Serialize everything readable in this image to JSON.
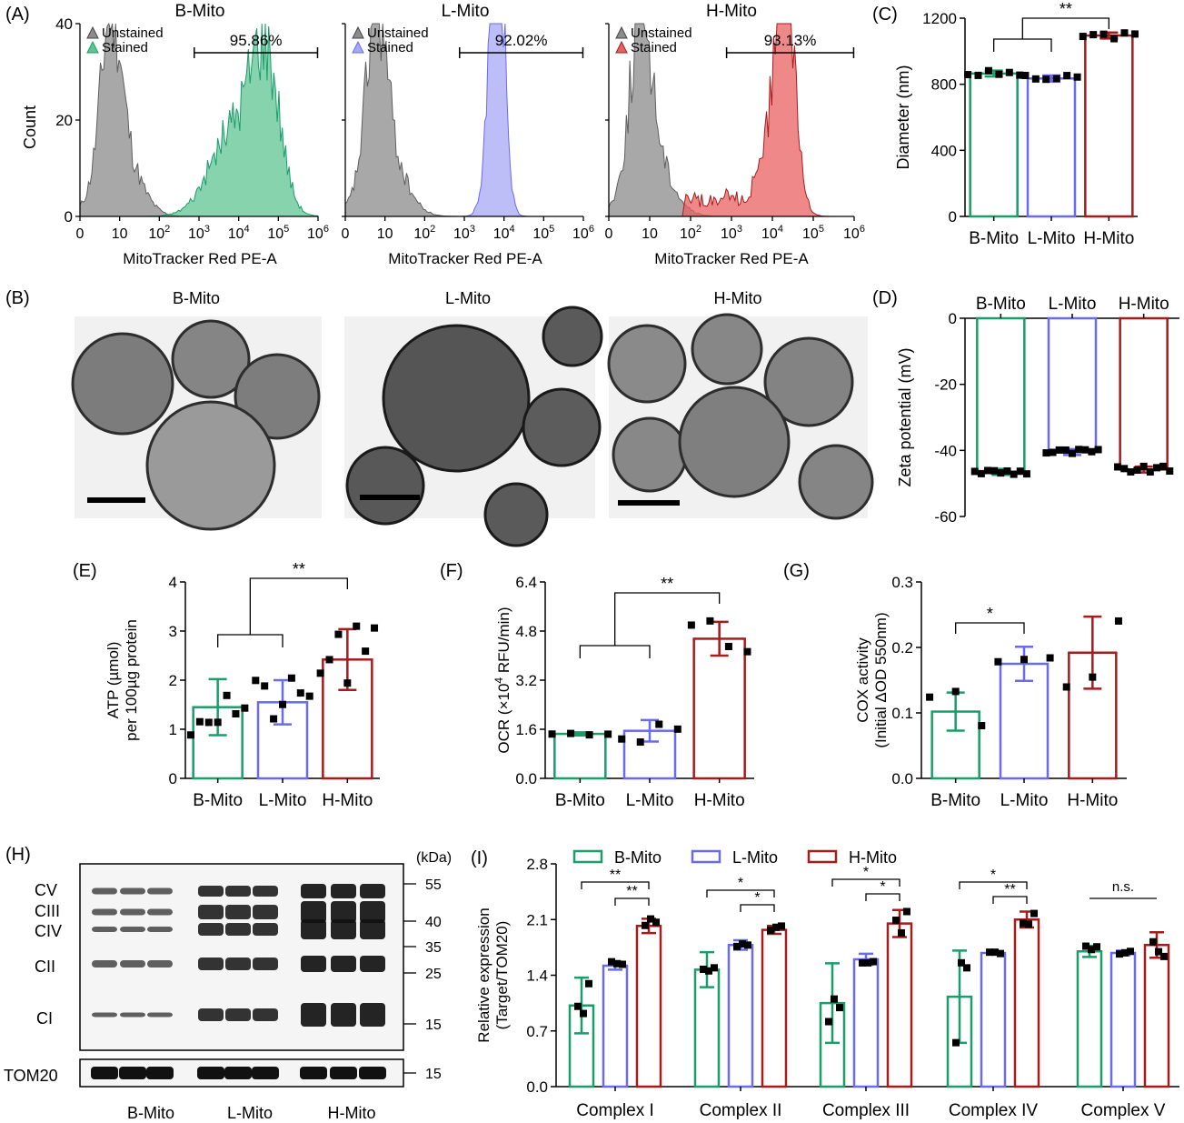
{
  "colors": {
    "b_mito": "#1a9d6a",
    "l_mito": "#6a6af0",
    "h_mito": "#a51c1c",
    "unstained": "#8c8c8c",
    "b_fill": "#5fc493",
    "l_fill": "#a7a7f5",
    "h_fill": "#e96060"
  },
  "panel_letters": {
    "a": "(A)",
    "b": "(B)",
    "c": "(C)",
    "d": "(D)",
    "e": "(E)",
    "f": "(F)",
    "g": "(G)",
    "h": "(H)",
    "i": "(I)"
  },
  "group_names": [
    "B-Mito",
    "L-Mito",
    "H-Mito"
  ],
  "sig": {
    "double": "**",
    "single": "*",
    "ns": "n.s."
  },
  "flow": {
    "ylabel": "Count",
    "xlabel": "MitoTracker Red PE-A",
    "y_ticks": [
      "0",
      "20",
      "40"
    ],
    "x_ticks": [
      {
        "base": "0",
        "exp": ""
      },
      {
        "base": "10",
        "exp": ""
      },
      {
        "base": "10",
        "exp": "2"
      },
      {
        "base": "10",
        "exp": "3"
      },
      {
        "base": "10",
        "exp": "4"
      },
      {
        "base": "10",
        "exp": "5"
      },
      {
        "base": "10",
        "exp": "6"
      }
    ],
    "legend_unstained": "Unstained",
    "legend_stained": "Stained",
    "panels": [
      {
        "title": "B-Mito",
        "gate_label": "95.86%"
      },
      {
        "title": "L-Mito",
        "gate_label": "92.02%"
      },
      {
        "title": "H-Mito",
        "gate_label": "93.13%"
      }
    ]
  },
  "tem": {
    "titles": [
      "B-Mito",
      "L-Mito",
      "H-Mito"
    ]
  },
  "blot": {
    "unit_label": "(kDa)",
    "band_labels": [
      "CV",
      "CIII",
      "CIV",
      "CII",
      "CI"
    ],
    "loading_label": "TOM20",
    "mw_markers": [
      "55",
      "40",
      "35",
      "25",
      "15"
    ],
    "tom20_marker": "15",
    "lane_labels": [
      "B-Mito",
      "L-Mito",
      "H-Mito"
    ]
  },
  "chart_data": [
    {
      "panel": "C",
      "type": "bar",
      "categories": [
        "B-Mito",
        "L-Mito",
        "H-Mito"
      ],
      "values": [
        865,
        835,
        1095
      ],
      "ylabel": "Diameter (nm)",
      "ylim": [
        0,
        1200
      ],
      "y_ticks": [
        "0",
        "400",
        "800",
        "1200"
      ],
      "significance": [
        {
          "label": "**",
          "between": "B-Mito & L-Mito vs H-Mito"
        }
      ]
    },
    {
      "panel": "D",
      "type": "bar",
      "categories": [
        "B-Mito",
        "L-Mito",
        "H-Mito"
      ],
      "values": [
        -46.5,
        -40.5,
        -45.8
      ],
      "ylabel": "Zeta potential (mV)",
      "ylim": [
        -60,
        0
      ],
      "y_ticks": [
        "0",
        "-20",
        "-40",
        "-60"
      ]
    },
    {
      "panel": "E",
      "type": "bar",
      "categories": [
        "B-Mito",
        "L-Mito",
        "H-Mito"
      ],
      "values": [
        1.45,
        1.55,
        2.42
      ],
      "error": [
        0.57,
        0.45,
        0.62
      ],
      "ylabel_line1": "ATP (µmol)",
      "ylabel_line2": "per 100µg protein",
      "ylim": [
        0,
        4
      ],
      "y_ticks": [
        "0",
        "1",
        "2",
        "3",
        "4"
      ],
      "significance": [
        {
          "label": "**",
          "between": "B-Mito & L-Mito vs H-Mito"
        }
      ]
    },
    {
      "panel": "F",
      "type": "bar",
      "categories": [
        "B-Mito",
        "L-Mito",
        "H-Mito"
      ],
      "values": [
        1.45,
        1.55,
        4.55
      ],
      "error": [
        0.05,
        0.35,
        0.55
      ],
      "ylabel_pre": "OCR (×10",
      "ylabel_sup": "4",
      "ylabel_post": " RFU/min)",
      "ylim": [
        0,
        6.4
      ],
      "y_ticks": [
        "0.0",
        "1.6",
        "3.2",
        "4.8",
        "6.4"
      ],
      "significance": [
        {
          "label": "**",
          "between": "B-Mito & L-Mito vs H-Mito"
        }
      ]
    },
    {
      "panel": "G",
      "type": "bar",
      "categories": [
        "B-Mito",
        "L-Mito",
        "H-Mito"
      ],
      "values": [
        0.102,
        0.175,
        0.192
      ],
      "error": [
        0.029,
        0.026,
        0.055
      ],
      "ylabel_line1": "COX activity",
      "ylabel_line2": "(Initial ΔOD 550nm)",
      "ylim": [
        0,
        0.3
      ],
      "y_ticks": [
        "0.0",
        "0.1",
        "0.2",
        "0.3"
      ],
      "significance": [
        {
          "label": "*",
          "between": "B-Mito vs L-Mito"
        }
      ]
    },
    {
      "panel": "I",
      "type": "bar",
      "categories": [
        "Complex I",
        "Complex II",
        "Complex III",
        "Complex IV",
        "Complex V"
      ],
      "ylabel_line1": "Relative expression",
      "ylabel_line2": "(Target/TOM20)",
      "ylim": [
        0,
        2.8
      ],
      "y_ticks": [
        "0.0",
        "0.7",
        "1.4",
        "2.1",
        "2.8"
      ],
      "legend_position": "top",
      "series": [
        {
          "name": "B-Mito",
          "values": [
            1.02,
            1.47,
            1.05,
            1.13,
            1.7
          ],
          "error": [
            0.35,
            0.22,
            0.5,
            0.58,
            0.07
          ]
        },
        {
          "name": "L-Mito",
          "values": [
            1.52,
            1.78,
            1.6,
            1.68,
            1.68
          ],
          "error": [
            0.05,
            0.06,
            0.07,
            0.02,
            0.03
          ]
        },
        {
          "name": "H-Mito",
          "values": [
            2.02,
            1.97,
            2.05,
            2.1,
            1.78
          ],
          "error": [
            0.09,
            0.05,
            0.17,
            0.1,
            0.16
          ]
        }
      ],
      "significance": [
        {
          "label": "**",
          "group": "Complex I",
          "between": "B-Mito vs H-Mito"
        },
        {
          "label": "**",
          "group": "Complex I",
          "between": "L-Mito vs H-Mito"
        },
        {
          "label": "*",
          "group": "Complex II",
          "between": "B-Mito vs H-Mito"
        },
        {
          "label": "*",
          "group": "Complex II",
          "between": "L-Mito vs H-Mito"
        },
        {
          "label": "*",
          "group": "Complex III",
          "between": "B-Mito vs H-Mito"
        },
        {
          "label": "*",
          "group": "Complex III",
          "between": "L-Mito vs H-Mito"
        },
        {
          "label": "*",
          "group": "Complex IV",
          "between": "B-Mito vs H-Mito"
        },
        {
          "label": "**",
          "group": "Complex IV",
          "between": "L-Mito vs H-Mito"
        },
        {
          "label": "n.s.",
          "group": "Complex V",
          "between": "all"
        }
      ]
    }
  ]
}
